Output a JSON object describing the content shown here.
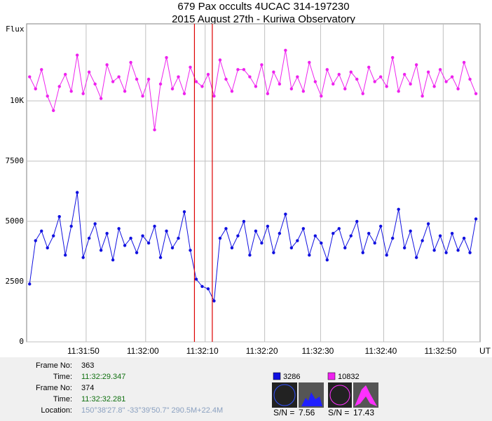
{
  "chart_data": {
    "type": "line",
    "title": "679 Pax occults 4UCAC 314-197230",
    "subtitle": "2015 August 27th - Kuriwa Observatory",
    "y_label": "Flux",
    "x_label": "UT",
    "xlim": [
      41500,
      41576.2
    ],
    "xticks": [
      {
        "value": 41510,
        "label": "11:31:50"
      },
      {
        "value": 41520,
        "label": "11:32:00"
      },
      {
        "value": 41530,
        "label": "11:32:10"
      },
      {
        "value": 41540,
        "label": "11:32:20"
      },
      {
        "value": 41549.4,
        "label": "11:32:30"
      },
      {
        "value": 41560,
        "label": "11:32:40"
      },
      {
        "value": 41570,
        "label": "11:32:50"
      }
    ],
    "ylim": [
      0,
      13200
    ],
    "yticks": [
      0,
      2500,
      5000,
      7500,
      {
        "value": 10000,
        "label": "10K"
      }
    ],
    "grid": true,
    "x": [
      41500.5,
      41501.5,
      41502.5,
      41503.5,
      41504.5,
      41505.5,
      41506.5,
      41507.5,
      41508.5,
      41509.5,
      41510.5,
      41511.5,
      41512.5,
      41513.5,
      41514.5,
      41515.5,
      41516.5,
      41517.5,
      41518.5,
      41519.5,
      41520.5,
      41521.5,
      41522.5,
      41523.5,
      41524.5,
      41525.5,
      41526.5,
      41527.5,
      41528.5,
      41529.5,
      41530.5,
      41531.5,
      41532.5,
      41533.5,
      41534.5,
      41535.5,
      41536.5,
      41537.5,
      41538.5,
      41539.5,
      41540.5,
      41541.5,
      41542.5,
      41543.5,
      41544.5,
      41545.5,
      41546.5,
      41547.5,
      41548.5,
      41549.5,
      41550.5,
      41551.5,
      41552.5,
      41553.5,
      41554.5,
      41555.5,
      41556.5,
      41557.5,
      41558.5,
      41559.5,
      41560.5,
      41561.5,
      41562.5,
      41563.5,
      41564.5,
      41565.5,
      41566.5,
      41567.5,
      41568.5,
      41569.5,
      41570.5,
      41571.5,
      41572.5,
      41573.5,
      41574.5,
      41575.5
    ],
    "series": [
      {
        "color": "#ee22ee",
        "values": [
          11000,
          10500,
          11300,
          10200,
          9600,
          10600,
          11100,
          10400,
          11900,
          10300,
          11200,
          10700,
          10100,
          11500,
          10800,
          11000,
          10400,
          11600,
          10900,
          10200,
          10900,
          8800,
          10700,
          11800,
          10500,
          11000,
          10300,
          11400,
          10800,
          10600,
          11100,
          10200,
          11700,
          10900,
          10400,
          11300,
          11300,
          11000,
          10600,
          11500,
          10300,
          11200,
          10700,
          12100,
          10500,
          11000,
          10400,
          11600,
          10800,
          10200,
          11300,
          10700,
          11100,
          10500,
          11200,
          10900,
          10300,
          11400,
          10800,
          11000,
          10600,
          11800,
          10400,
          11100,
          10700,
          11500,
          10200,
          11200,
          10600,
          11300,
          10800,
          11000,
          10500,
          11600,
          10900,
          10300
        ]
      },
      {
        "color": "#1010e0",
        "values": [
          2400,
          4200,
          4600,
          3900,
          4400,
          5200,
          3600,
          4800,
          6200,
          3500,
          4300,
          4900,
          3800,
          4500,
          3400,
          4700,
          4000,
          4300,
          3700,
          4400,
          4100,
          4800,
          3500,
          4600,
          3900,
          4300,
          5400,
          3800,
          2600,
          2300,
          2200,
          1700,
          4300,
          4700,
          3900,
          4400,
          5000,
          3600,
          4600,
          4100,
          4800,
          3700,
          4500,
          5300,
          3900,
          4200,
          4700,
          3600,
          4400,
          4100,
          3400,
          4500,
          4700,
          3900,
          4400,
          5000,
          3700,
          4500,
          4100,
          4800,
          3600,
          4300,
          5500,
          3900,
          4600,
          3500,
          4200,
          4900,
          3800,
          4400,
          3700,
          4500,
          3800,
          4300,
          3700,
          5100
        ]
      }
    ],
    "markers": [
      {
        "x": 41528.2,
        "color": "#dd0000"
      },
      {
        "x": 41531.2,
        "color": "#dd0000"
      }
    ]
  },
  "panel": {
    "rows": [
      {
        "label": "Frame No:",
        "value": "363"
      },
      {
        "label": "Time:",
        "value": "11:32:29.347"
      },
      {
        "label": "Frame No:",
        "value": "374"
      },
      {
        "label": "Time:",
        "value": "11:32:32.281"
      },
      {
        "label": "Location:",
        "value": "150°38'27.8\" -33°39'50.7\" 290.5M+22.4M"
      }
    ],
    "readouts": [
      {
        "color": "#1010e0",
        "value": 3286,
        "sn_label": "S/N =",
        "sn": 7.56
      },
      {
        "color": "#ee22ee",
        "value": 10832,
        "sn_label": "S/N =",
        "sn": 17.43
      }
    ]
  }
}
